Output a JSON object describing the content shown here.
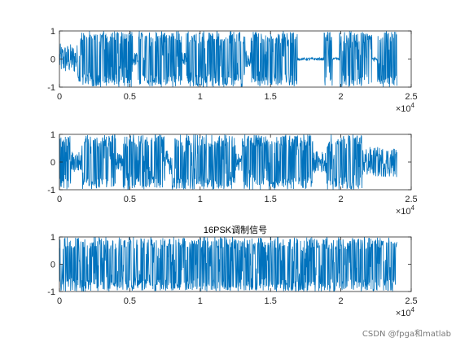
{
  "chart_data": [
    {
      "type": "line",
      "title": "",
      "xlim": [
        0,
        25000
      ],
      "ylim": [
        -1,
        1
      ],
      "x_ticks": [
        "0",
        "0.5",
        "1",
        "1.5",
        "2",
        "2.5"
      ],
      "y_ticks": [
        "-1",
        "0",
        "1"
      ],
      "x_exponent_base": "×10",
      "x_exponent_power": "4",
      "series_color": "#0072BD",
      "signal_end": 24000,
      "envelope_segments": [
        {
          "x": [
            0,
            1300
          ],
          "amp": 0.55
        },
        {
          "x": [
            1300,
            5200
          ],
          "amp": 1.0
        },
        {
          "x": [
            5200,
            5600
          ],
          "amp": 0.25
        },
        {
          "x": [
            5600,
            8700
          ],
          "amp": 1.0
        },
        {
          "x": [
            8700,
            9000
          ],
          "amp": 0.25
        },
        {
          "x": [
            9000,
            13200
          ],
          "amp": 1.0
        },
        {
          "x": [
            13200,
            13600
          ],
          "amp": 0.3
        },
        {
          "x": [
            13600,
            16900
          ],
          "amp": 1.0
        },
        {
          "x": [
            16900,
            18800
          ],
          "amp": 0.05
        },
        {
          "x": [
            18800,
            19400
          ],
          "amp": 1.0
        },
        {
          "x": [
            19400,
            19900
          ],
          "amp": 0.05
        },
        {
          "x": [
            19900,
            22200
          ],
          "amp": 1.0
        },
        {
          "x": [
            22200,
            22600
          ],
          "amp": 0.1
        },
        {
          "x": [
            22600,
            24000
          ],
          "amp": 1.0
        }
      ]
    },
    {
      "type": "line",
      "title": "",
      "xlim": [
        0,
        25000
      ],
      "ylim": [
        -1,
        1
      ],
      "x_ticks": [
        "0",
        "0.5",
        "1",
        "1.5",
        "2",
        "2.5"
      ],
      "y_ticks": [
        "-1",
        "0",
        "1"
      ],
      "x_exponent_base": "×10",
      "x_exponent_power": "4",
      "series_color": "#0072BD",
      "signal_end": 24000,
      "envelope_segments": [
        {
          "x": [
            0,
            800
          ],
          "amp": 1.0
        },
        {
          "x": [
            800,
            1600
          ],
          "amp": 0.4
        },
        {
          "x": [
            1600,
            4000
          ],
          "amp": 1.0
        },
        {
          "x": [
            4000,
            4500
          ],
          "amp": 0.35
        },
        {
          "x": [
            4500,
            7500
          ],
          "amp": 1.0
        },
        {
          "x": [
            7500,
            8000
          ],
          "amp": 0.45
        },
        {
          "x": [
            8000,
            12500
          ],
          "amp": 1.0
        },
        {
          "x": [
            12500,
            13000
          ],
          "amp": 0.35
        },
        {
          "x": [
            13000,
            18000
          ],
          "amp": 1.0
        },
        {
          "x": [
            18000,
            19000
          ],
          "amp": 0.4
        },
        {
          "x": [
            19000,
            21500
          ],
          "amp": 1.0
        },
        {
          "x": [
            21500,
            24000
          ],
          "amp": 0.55
        }
      ]
    },
    {
      "type": "line",
      "title": "16PSK调制信号",
      "xlim": [
        0,
        25000
      ],
      "ylim": [
        -1,
        1
      ],
      "x_ticks": [
        "0",
        "0.5",
        "1",
        "1.5",
        "2",
        "2.5"
      ],
      "y_ticks": [
        "-1",
        "0",
        "1"
      ],
      "x_exponent_base": "×10",
      "x_exponent_power": "4",
      "series_color": "#0072BD",
      "signal_end": 24000,
      "envelope_segments": [
        {
          "x": [
            0,
            24000
          ],
          "amp": 1.0
        }
      ]
    }
  ],
  "watermark": "CSDN @fpga和matlab"
}
